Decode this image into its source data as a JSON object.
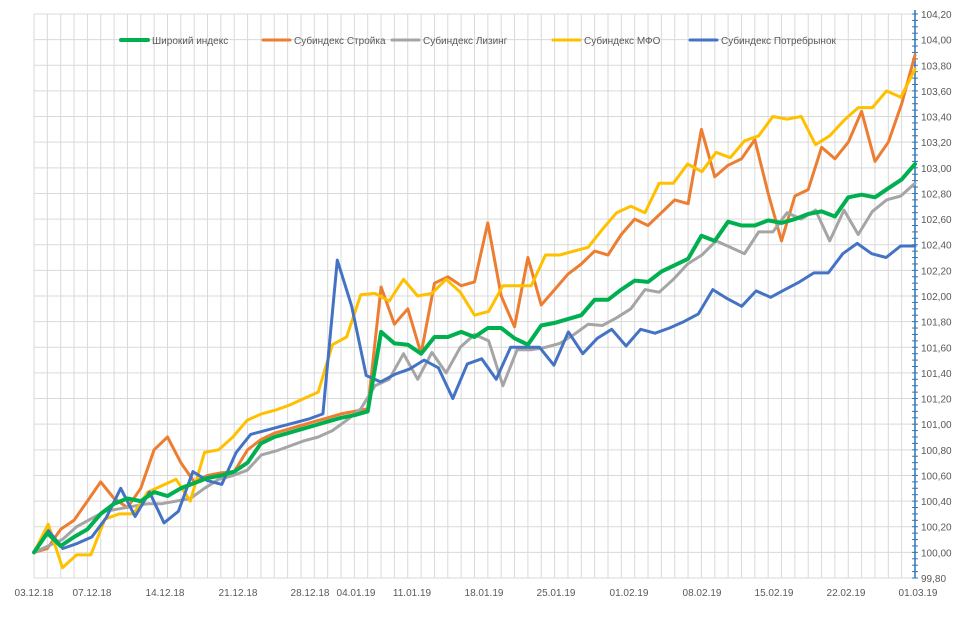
{
  "chart_data": {
    "type": "line",
    "title": "",
    "xlabel": "",
    "ylabel": "",
    "ylim": [
      99.8,
      104.2
    ],
    "y_ticks": [
      99.8,
      100.0,
      100.2,
      100.4,
      100.6,
      100.8,
      101.0,
      101.2,
      101.4,
      101.6,
      101.8,
      102.0,
      102.2,
      102.4,
      102.6,
      102.8,
      103.0,
      103.2,
      103.4,
      103.6,
      103.8,
      104.0,
      104.2
    ],
    "y_tick_labels": [
      "99,80",
      "100,00",
      "100,20",
      "100,40",
      "100,60",
      "100,80",
      "101,00",
      "101,20",
      "101,40",
      "101,60",
      "101,80",
      "102,00",
      "102,20",
      "102,40",
      "102,60",
      "102,80",
      "103,00",
      "103,20",
      "103,40",
      "103,60",
      "103,80",
      "104,00",
      "104,20"
    ],
    "x_tick_labels": [
      "03.12.18",
      "07.12.18",
      "14.12.18",
      "21.12.18",
      "28.12.18",
      "04.01.19",
      "11.01.19",
      "18.01.19",
      "25.01.19",
      "01.02.19",
      "08.02.19",
      "15.02.19",
      "22.02.19",
      "01.03.19"
    ],
    "y_axis_side": "right",
    "grid": true,
    "legend_position": "top",
    "series": [
      {
        "name": "Широкий индекс",
        "color": "#00b050",
        "values": [
          100.0,
          100.15,
          100.05,
          100.12,
          100.18,
          100.3,
          100.38,
          100.42,
          100.4,
          100.47,
          100.44,
          100.5,
          100.54,
          100.58,
          100.6,
          100.63,
          100.7,
          100.85,
          100.9,
          100.93,
          100.96,
          100.99,
          101.02,
          101.05,
          101.07,
          101.1,
          101.72,
          101.63,
          101.62,
          101.55,
          101.68,
          101.68,
          101.72,
          101.68,
          101.75,
          101.75,
          101.67,
          101.62,
          101.77,
          101.79,
          101.82,
          101.85,
          101.97,
          101.97,
          102.05,
          102.12,
          102.11,
          102.19,
          102.24,
          102.29,
          102.47,
          102.43,
          102.58,
          102.55,
          102.55,
          102.59,
          102.57,
          102.6,
          102.64,
          102.66,
          102.62,
          102.77,
          102.79,
          102.77,
          102.84,
          102.91,
          103.03
        ]
      },
      {
        "name": "Субиндекс Стройка",
        "color": "#ed7d31",
        "values": [
          100.0,
          100.03,
          100.18,
          100.25,
          100.4,
          100.55,
          100.42,
          100.35,
          100.5,
          100.8,
          100.9,
          100.7,
          100.55,
          100.6,
          100.62,
          100.63,
          100.8,
          100.88,
          100.93,
          100.96,
          100.99,
          101.02,
          101.05,
          101.08,
          101.1,
          101.12,
          102.07,
          101.78,
          101.9,
          101.55,
          102.1,
          102.15,
          102.08,
          102.11,
          102.57,
          102.0,
          101.76,
          102.3,
          101.93,
          102.05,
          102.17,
          102.25,
          102.35,
          102.32,
          102.48,
          102.6,
          102.55,
          102.65,
          102.75,
          102.72,
          103.3,
          102.93,
          103.02,
          103.07,
          103.22,
          102.8,
          102.43,
          102.78,
          102.83,
          103.16,
          103.07,
          103.2,
          103.44,
          103.05,
          103.2,
          103.5,
          103.88
        ]
      },
      {
        "name": "Субиндекс Лизинг",
        "color": "#a5a5a5",
        "values": [
          100.0,
          100.05,
          100.1,
          100.2,
          100.26,
          100.32,
          100.34,
          100.36,
          100.38,
          100.38,
          100.4,
          100.42,
          100.5,
          100.57,
          100.6,
          100.64,
          100.76,
          100.79,
          100.83,
          100.87,
          100.9,
          100.95,
          101.03,
          101.12,
          101.3,
          101.35,
          101.55,
          101.35,
          101.56,
          101.4,
          101.6,
          101.7,
          101.65,
          101.3,
          101.58,
          101.58,
          101.6,
          101.63,
          101.7,
          101.78,
          101.77,
          101.83,
          101.9,
          102.05,
          102.03,
          102.13,
          102.25,
          102.32,
          102.43,
          102.38,
          102.33,
          102.5,
          102.5,
          102.65,
          102.6,
          102.67,
          102.43,
          102.67,
          102.48,
          102.66,
          102.75,
          102.78,
          102.88
        ]
      },
      {
        "name": "Субиндекс МФО",
        "color": "#ffc000",
        "values": [
          100.0,
          100.22,
          99.88,
          99.98,
          99.98,
          100.26,
          100.3,
          100.3,
          100.47,
          100.52,
          100.57,
          100.4,
          100.78,
          100.8,
          100.9,
          101.03,
          101.08,
          101.11,
          101.15,
          101.2,
          101.25,
          101.62,
          101.68,
          102.01,
          102.02,
          101.96,
          102.13,
          102.0,
          102.02,
          102.13,
          102.03,
          101.85,
          101.88,
          102.08,
          102.08,
          102.08,
          102.32,
          102.32,
          102.35,
          102.38,
          102.52,
          102.65,
          102.7,
          102.65,
          102.88,
          102.88,
          103.03,
          102.97,
          103.12,
          103.08,
          103.21,
          103.25,
          103.4,
          103.38,
          103.4,
          103.18,
          103.25,
          103.37,
          103.47,
          103.47,
          103.6,
          103.55,
          103.77
        ]
      },
      {
        "name": "Субиндекс Потребрынок",
        "color": "#4472c4",
        "values": [
          100.0,
          100.17,
          100.03,
          100.07,
          100.12,
          100.27,
          100.5,
          100.28,
          100.47,
          100.23,
          100.32,
          100.63,
          100.56,
          100.53,
          100.78,
          100.92,
          100.95,
          100.98,
          101.01,
          101.04,
          101.08,
          102.28,
          101.92,
          101.38,
          101.33,
          101.39,
          101.43,
          101.5,
          101.44,
          101.2,
          101.47,
          101.51,
          101.35,
          101.6,
          101.6,
          101.6,
          101.46,
          101.72,
          101.55,
          101.67,
          101.74,
          101.61,
          101.74,
          101.71,
          101.75,
          101.8,
          101.86,
          102.05,
          101.98,
          101.92,
          102.04,
          101.99,
          102.05,
          102.11,
          102.18,
          102.18,
          102.33,
          102.41,
          102.33,
          102.3,
          102.39,
          102.39
        ]
      }
    ]
  }
}
